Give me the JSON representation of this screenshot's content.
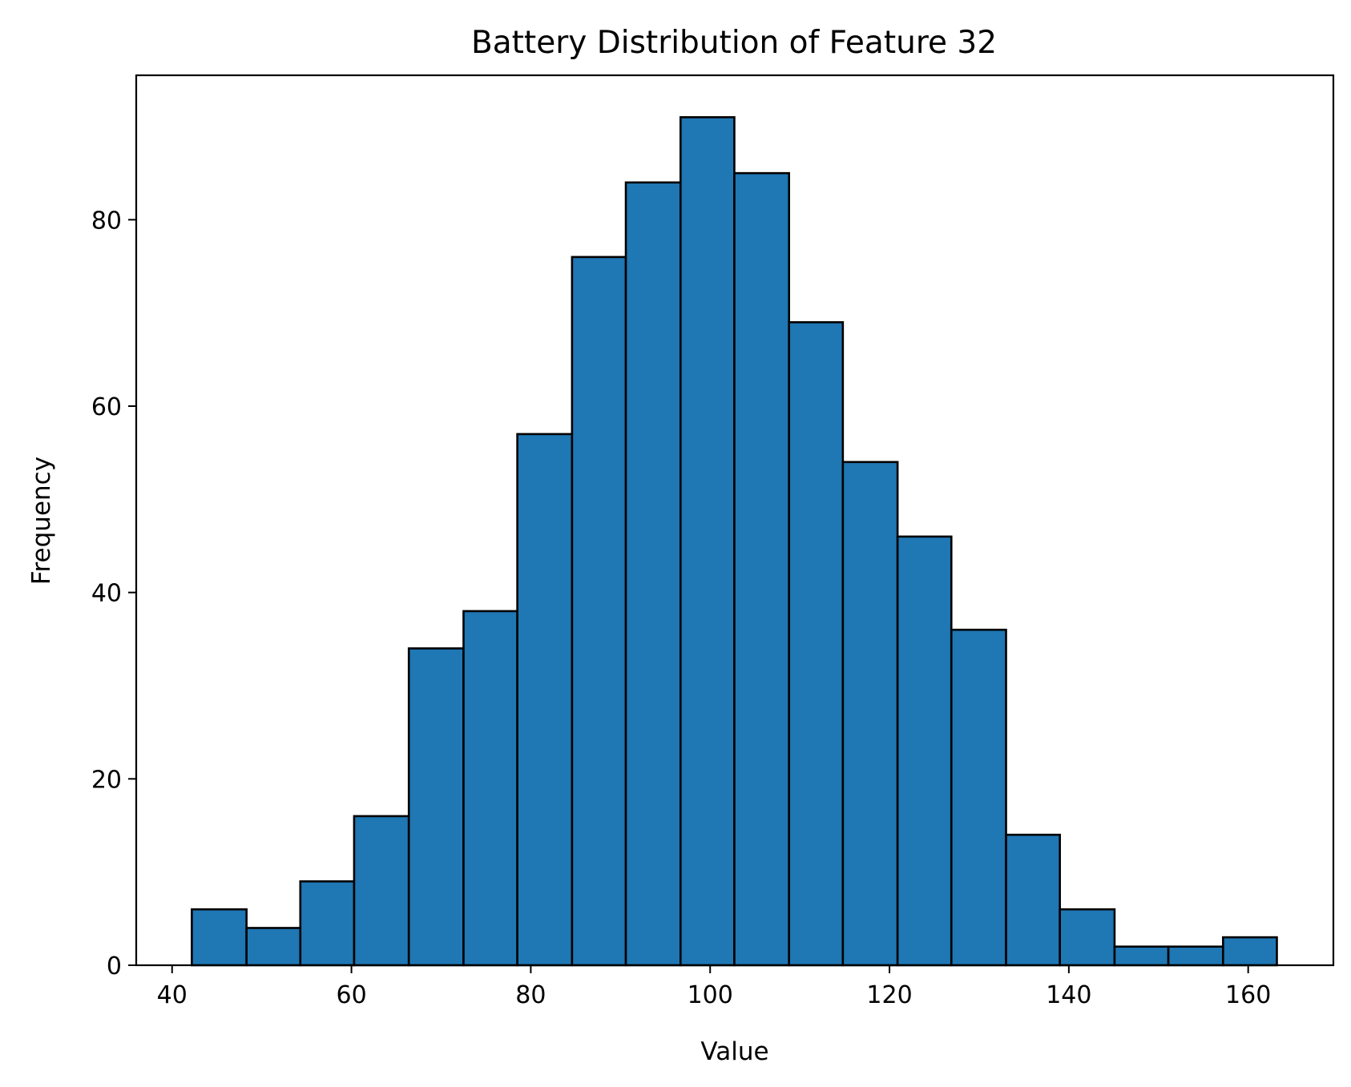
{
  "chart_data": {
    "type": "bar",
    "title": "Battery Distribution of Feature 32",
    "xlabel": "Value",
    "ylabel": "Frequency",
    "xlim": [
      36,
      169.5
    ],
    "ylim": [
      0,
      95.5
    ],
    "xticks": [
      40,
      60,
      80,
      100,
      120,
      140,
      160
    ],
    "yticks": [
      0,
      20,
      40,
      60,
      80
    ],
    "bin_edges": [
      42.2,
      48.3,
      54.3,
      60.3,
      66.4,
      72.5,
      78.5,
      84.6,
      90.6,
      96.7,
      102.7,
      108.8,
      114.8,
      120.9,
      126.9,
      133.0,
      139.0,
      145.1,
      151.1,
      157.2,
      163.2
    ],
    "values": [
      6,
      4,
      9,
      16,
      34,
      38,
      57,
      76,
      84,
      91,
      85,
      69,
      54,
      46,
      36,
      14,
      6,
      2,
      2,
      3
    ],
    "grid": false,
    "bar_color": "#1f77b4",
    "edge_color": "#000000"
  }
}
